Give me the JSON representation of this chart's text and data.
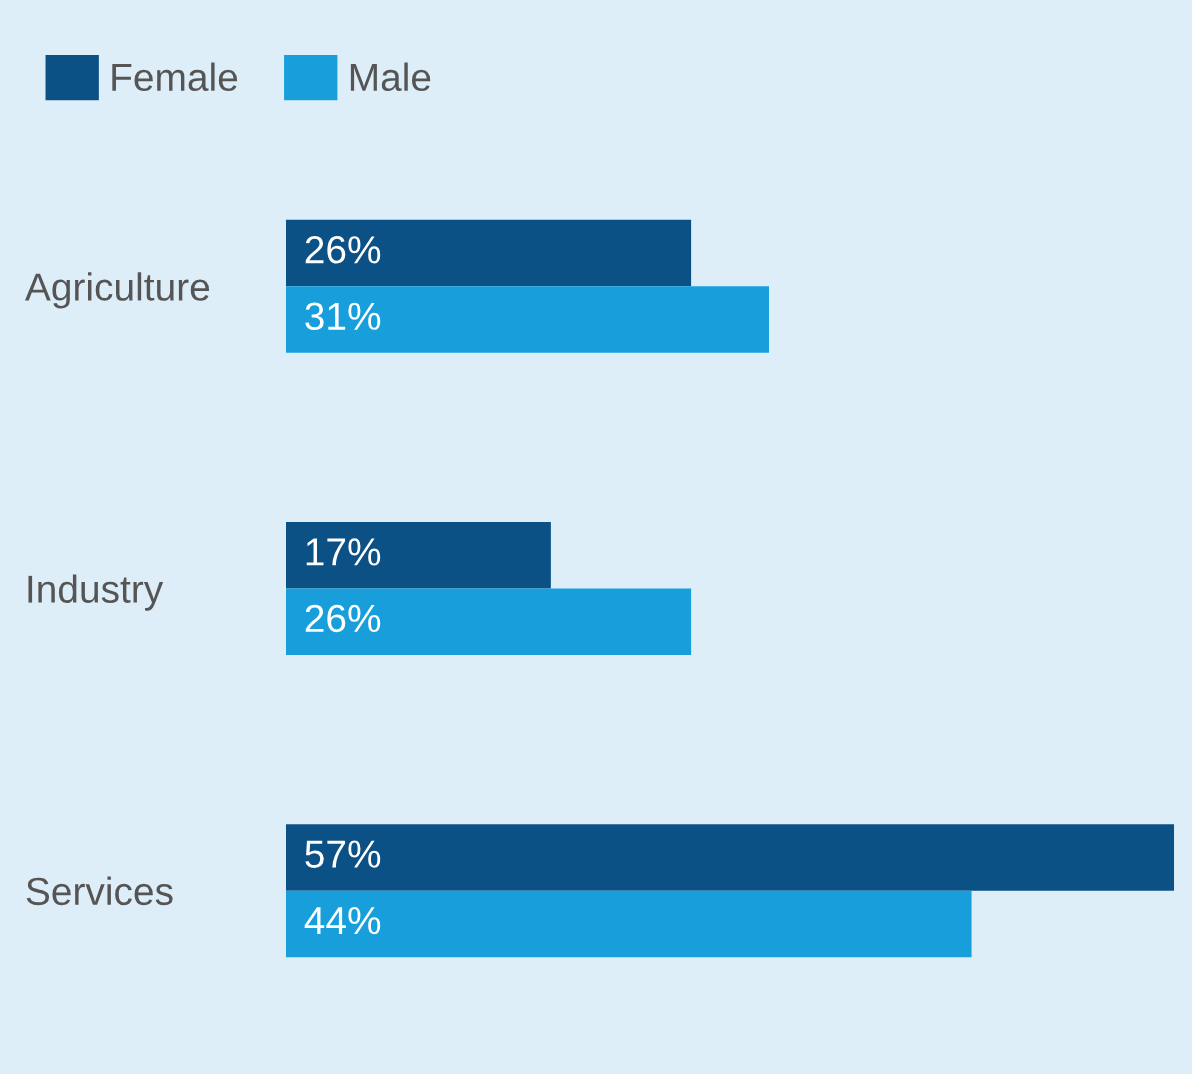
{
  "chart_data": {
    "type": "bar",
    "orientation": "horizontal",
    "categories": [
      "Agriculture",
      "Industry",
      "Services"
    ],
    "series": [
      {
        "name": "Female",
        "color": "#0b5186",
        "values": [
          26,
          17,
          57
        ],
        "value_labels": [
          "26%",
          "17%",
          "57%"
        ]
      },
      {
        "name": "Male",
        "color": "#189fdb",
        "values": [
          31,
          26,
          44
        ],
        "value_labels": [
          "31%",
          "26%",
          "44%"
        ]
      }
    ],
    "legend": "top left",
    "grid": false
  }
}
